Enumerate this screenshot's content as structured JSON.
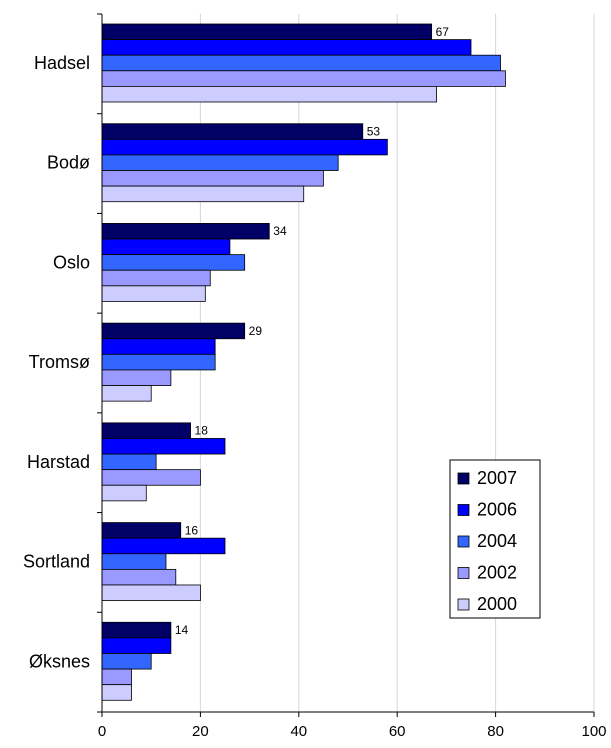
{
  "chart_data": {
    "type": "bar",
    "orientation": "horizontal",
    "categories": [
      "Hadsel",
      "Bodø",
      "Oslo",
      "Tromsø",
      "Harstad",
      "Sortland",
      "Øksnes"
    ],
    "series": [
      {
        "name": "2007",
        "color": "#000066",
        "values": [
          67,
          53,
          34,
          29,
          18,
          16,
          14
        ]
      },
      {
        "name": "2006",
        "color": "#0000ff",
        "values": [
          75,
          58,
          26,
          23,
          25,
          25,
          14
        ]
      },
      {
        "name": "2004",
        "color": "#3366ff",
        "values": [
          81,
          48,
          29,
          23,
          11,
          13,
          10
        ]
      },
      {
        "name": "2002",
        "color": "#9999ff",
        "values": [
          82,
          45,
          22,
          14,
          20,
          15,
          6
        ]
      },
      {
        "name": "2000",
        "color": "#ccccff",
        "values": [
          68,
          41,
          21,
          10,
          9,
          20,
          6
        ]
      }
    ],
    "data_labels": {
      "series": "2007",
      "values": [
        "67",
        "53",
        "34",
        "29",
        "18",
        "16",
        "14"
      ]
    },
    "x_ticks": [
      "0",
      "20",
      "40",
      "60",
      "80",
      "100"
    ],
    "xlim": [
      0,
      100
    ],
    "grid": "vertical",
    "legend_position": "bottom-right",
    "title": "",
    "xlabel": "",
    "ylabel": ""
  }
}
